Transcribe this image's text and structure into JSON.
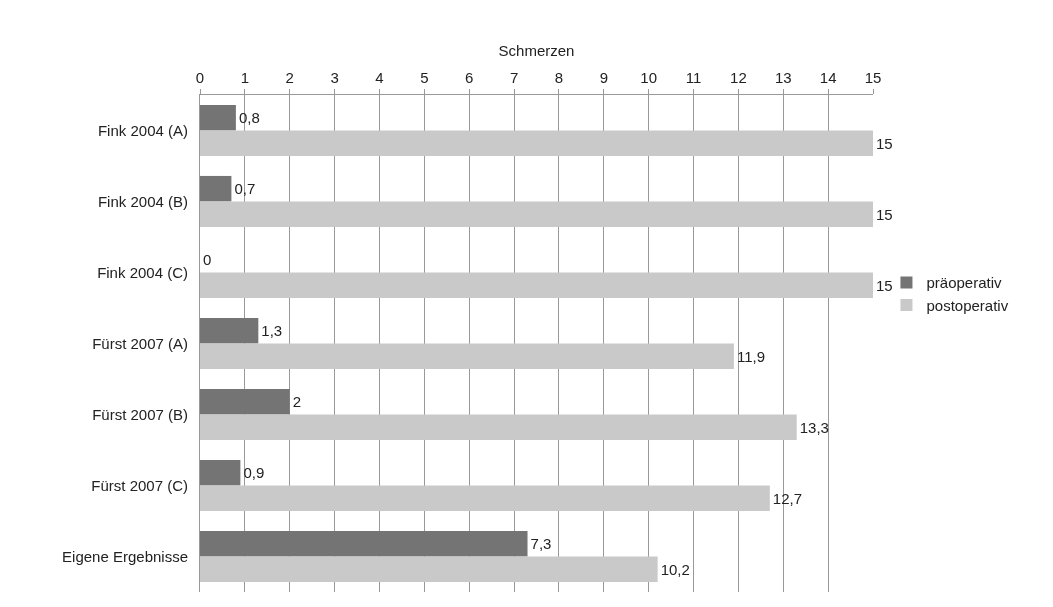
{
  "chart_data": {
    "type": "bar",
    "orientation": "horizontal",
    "xlabel": "Schmerzen",
    "categories": [
      "Fink 2004 (A)",
      "Fink 2004 (B)",
      "Fink 2004 (C)",
      "Fürst 2007 (A)",
      "Fürst 2007 (B)",
      "Fürst 2007 (C)",
      "Eigene Ergebnisse"
    ],
    "series": [
      {
        "name": "präoperativ",
        "color": "#747474",
        "values": [
          0.8,
          0.7,
          0,
          1.3,
          2,
          0.9,
          7.3
        ],
        "value_labels": [
          "0,8",
          "0,7",
          "0",
          "1,3",
          "2",
          "0,9",
          "7,3"
        ]
      },
      {
        "name": "postoperativ",
        "color": "#c9c9c9",
        "values": [
          15,
          15,
          15,
          11.9,
          13.3,
          12.7,
          10.2
        ],
        "value_labels": [
          "15",
          "15",
          "15",
          "11,9",
          "13,3",
          "12,7",
          "10,2"
        ]
      }
    ],
    "xlim": [
      0,
      15
    ],
    "xticks": [
      0,
      1,
      2,
      3,
      4,
      5,
      6,
      7,
      8,
      9,
      10,
      11,
      12,
      13,
      14,
      15
    ],
    "grid": "x",
    "legend": "right"
  }
}
